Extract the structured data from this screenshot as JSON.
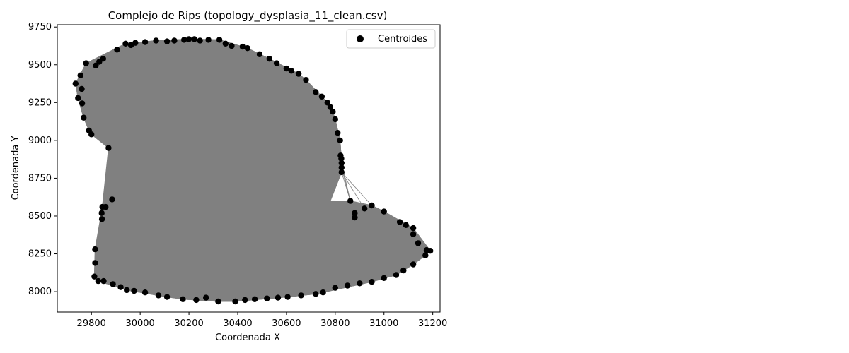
{
  "chart_data": {
    "type": "scatter",
    "title": "Complejo de Rips (topology_dysplasia_11_clean.csv)",
    "xlabel": "Coordenada X",
    "ylabel": "Coordenada Y",
    "xlim": [
      29660,
      31230
    ],
    "ylim": [
      7865,
      9765
    ],
    "xticks": [
      29800,
      30000,
      30200,
      30400,
      30600,
      30800,
      31000,
      31200
    ],
    "yticks": [
      8000,
      8250,
      8500,
      8750,
      9000,
      9250,
      9500,
      9750
    ],
    "grid": false,
    "legend": {
      "position": "top-right",
      "entries": [
        "Centroides"
      ]
    },
    "colors": {
      "points": "#000000",
      "edges": "#808080",
      "fill": "#808080"
    },
    "series": [
      {
        "name": "Centroides",
        "points": [
          [
            29735,
            9375
          ],
          [
            29745,
            9280
          ],
          [
            29755,
            9430
          ],
          [
            29760,
            9340
          ],
          [
            29762,
            9245
          ],
          [
            29768,
            9150
          ],
          [
            29778,
            9510
          ],
          [
            29790,
            9065
          ],
          [
            29800,
            9040
          ],
          [
            29818,
            9495
          ],
          [
            29832,
            9520
          ],
          [
            29848,
            9540
          ],
          [
            29870,
            8950
          ],
          [
            29905,
            9600
          ],
          [
            29940,
            9640
          ],
          [
            29962,
            9630
          ],
          [
            29980,
            9645
          ],
          [
            30020,
            9650
          ],
          [
            30065,
            9660
          ],
          [
            30110,
            9655
          ],
          [
            30140,
            9660
          ],
          [
            30180,
            9665
          ],
          [
            30200,
            9670
          ],
          [
            30222,
            9670
          ],
          [
            30245,
            9660
          ],
          [
            30280,
            9665
          ],
          [
            30325,
            9665
          ],
          [
            30350,
            9640
          ],
          [
            30375,
            9625
          ],
          [
            30420,
            9620
          ],
          [
            30440,
            9610
          ],
          [
            30490,
            9570
          ],
          [
            30530,
            9540
          ],
          [
            30560,
            9510
          ],
          [
            30600,
            9475
          ],
          [
            30620,
            9460
          ],
          [
            30650,
            9440
          ],
          [
            30680,
            9400
          ],
          [
            30720,
            9320
          ],
          [
            30745,
            9290
          ],
          [
            30768,
            9250
          ],
          [
            30780,
            9220
          ],
          [
            30790,
            9190
          ],
          [
            30800,
            9140
          ],
          [
            30810,
            9050
          ],
          [
            30820,
            9000
          ],
          [
            30822,
            8900
          ],
          [
            30825,
            8880
          ],
          [
            30826,
            8850
          ],
          [
            30826,
            8820
          ],
          [
            30826,
            8790
          ],
          [
            29845,
            8560
          ],
          [
            29842,
            8520
          ],
          [
            29843,
            8480
          ],
          [
            29858,
            8560
          ],
          [
            29885,
            8610
          ],
          [
            29815,
            8280
          ],
          [
            29815,
            8190
          ],
          [
            29812,
            8100
          ],
          [
            29828,
            8070
          ],
          [
            29850,
            8070
          ],
          [
            29888,
            8050
          ],
          [
            29920,
            8030
          ],
          [
            29945,
            8010
          ],
          [
            29975,
            8005
          ],
          [
            30020,
            7995
          ],
          [
            30075,
            7975
          ],
          [
            30110,
            7965
          ],
          [
            30175,
            7950
          ],
          [
            30230,
            7945
          ],
          [
            30270,
            7960
          ],
          [
            30320,
            7935
          ],
          [
            30390,
            7935
          ],
          [
            30430,
            7945
          ],
          [
            30470,
            7950
          ],
          [
            30520,
            7955
          ],
          [
            30565,
            7960
          ],
          [
            30605,
            7965
          ],
          [
            30660,
            7975
          ],
          [
            30720,
            7985
          ],
          [
            30750,
            7995
          ],
          [
            30800,
            8025
          ],
          [
            30850,
            8040
          ],
          [
            30900,
            8055
          ],
          [
            30950,
            8065
          ],
          [
            31000,
            8090
          ],
          [
            31050,
            8110
          ],
          [
            31080,
            8140
          ],
          [
            31120,
            8180
          ],
          [
            31170,
            8240
          ],
          [
            31190,
            8270
          ],
          [
            31175,
            8275
          ],
          [
            31140,
            8320
          ],
          [
            31120,
            8380
          ],
          [
            31120,
            8420
          ],
          [
            31090,
            8440
          ],
          [
            31065,
            8460
          ],
          [
            31000,
            8530
          ],
          [
            30950,
            8570
          ],
          [
            30920,
            8550
          ],
          [
            30880,
            8520
          ],
          [
            30862,
            8600
          ],
          [
            30880,
            8490
          ]
        ]
      }
    ]
  }
}
